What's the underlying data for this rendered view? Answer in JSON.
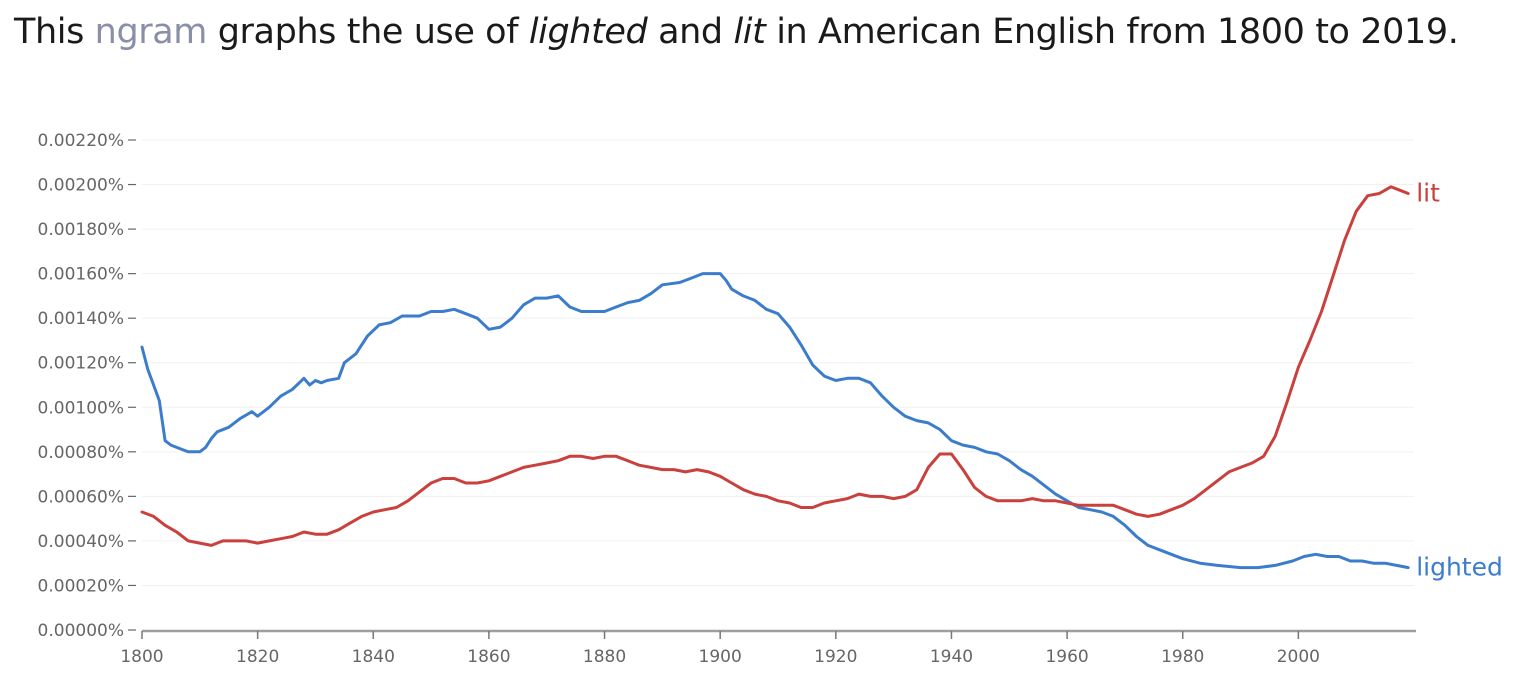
{
  "caption": {
    "prefix": "This ",
    "link_text": "ngram",
    "middle1": " graphs the use of ",
    "word1": "lighted",
    "middle2": " and ",
    "word2": "lit",
    "suffix": " in American English from 1800 to 2019."
  },
  "chart_data": {
    "type": "line",
    "title": "",
    "xlabel": "",
    "ylabel": "",
    "xlim": [
      1800,
      2019
    ],
    "ylim": [
      0,
      0.0022
    ],
    "x_ticks": [
      1800,
      1820,
      1840,
      1860,
      1880,
      1900,
      1920,
      1940,
      1960,
      1980,
      2000
    ],
    "x_tick_labels": [
      "1800",
      "1820",
      "1840",
      "1860",
      "1880",
      "1900",
      "1920",
      "1940",
      "1960",
      "1980",
      "2000"
    ],
    "y_ticks": [
      0,
      0.0002,
      0.0004,
      0.0006,
      0.0008,
      0.001,
      0.0012,
      0.0014,
      0.0016,
      0.0018,
      0.002,
      0.0022
    ],
    "y_tick_labels": [
      "0.00000%",
      "0.00020%",
      "0.00040%",
      "0.00060%",
      "0.00080%",
      "0.00100%",
      "0.00120%",
      "0.00140%",
      "0.00160%",
      "0.00180%",
      "0.00200%",
      "0.00220%"
    ],
    "grid": "horizontal",
    "legend": "end-of-line labels",
    "series": [
      {
        "name": "lighted",
        "color": "#3b7dcc",
        "points": [
          [
            1800,
            0.00127
          ],
          [
            1801,
            0.00117
          ],
          [
            1802,
            0.0011
          ],
          [
            1803,
            0.00103
          ],
          [
            1804,
            0.00085
          ],
          [
            1805,
            0.00083
          ],
          [
            1806,
            0.00082
          ],
          [
            1807,
            0.00081
          ],
          [
            1808,
            0.0008
          ],
          [
            1810,
            0.0008
          ],
          [
            1811,
            0.00082
          ],
          [
            1812,
            0.00086
          ],
          [
            1813,
            0.00089
          ],
          [
            1815,
            0.00091
          ],
          [
            1817,
            0.00095
          ],
          [
            1819,
            0.00098
          ],
          [
            1820,
            0.00096
          ],
          [
            1822,
            0.001
          ],
          [
            1824,
            0.00105
          ],
          [
            1826,
            0.00108
          ],
          [
            1828,
            0.00113
          ],
          [
            1829,
            0.0011
          ],
          [
            1830,
            0.00112
          ],
          [
            1831,
            0.00111
          ],
          [
            1832,
            0.00112
          ],
          [
            1834,
            0.00113
          ],
          [
            1835,
            0.0012
          ],
          [
            1837,
            0.00124
          ],
          [
            1839,
            0.00132
          ],
          [
            1841,
            0.00137
          ],
          [
            1843,
            0.00138
          ],
          [
            1845,
            0.00141
          ],
          [
            1848,
            0.00141
          ],
          [
            1850,
            0.00143
          ],
          [
            1852,
            0.00143
          ],
          [
            1854,
            0.00144
          ],
          [
            1856,
            0.00142
          ],
          [
            1858,
            0.0014
          ],
          [
            1860,
            0.00135
          ],
          [
            1862,
            0.00136
          ],
          [
            1864,
            0.0014
          ],
          [
            1866,
            0.00146
          ],
          [
            1868,
            0.00149
          ],
          [
            1870,
            0.00149
          ],
          [
            1872,
            0.0015
          ],
          [
            1874,
            0.00145
          ],
          [
            1876,
            0.00143
          ],
          [
            1878,
            0.00143
          ],
          [
            1880,
            0.00143
          ],
          [
            1882,
            0.00145
          ],
          [
            1884,
            0.00147
          ],
          [
            1886,
            0.00148
          ],
          [
            1888,
            0.00151
          ],
          [
            1890,
            0.00155
          ],
          [
            1893,
            0.00156
          ],
          [
            1895,
            0.00158
          ],
          [
            1897,
            0.0016
          ],
          [
            1900,
            0.0016
          ],
          [
            1901,
            0.00157
          ],
          [
            1902,
            0.00153
          ],
          [
            1904,
            0.0015
          ],
          [
            1906,
            0.00148
          ],
          [
            1908,
            0.00144
          ],
          [
            1910,
            0.00142
          ],
          [
            1912,
            0.00136
          ],
          [
            1914,
            0.00128
          ],
          [
            1916,
            0.00119
          ],
          [
            1918,
            0.00114
          ],
          [
            1920,
            0.00112
          ],
          [
            1922,
            0.00113
          ],
          [
            1924,
            0.00113
          ],
          [
            1926,
            0.00111
          ],
          [
            1928,
            0.00105
          ],
          [
            1930,
            0.001
          ],
          [
            1932,
            0.00096
          ],
          [
            1934,
            0.00094
          ],
          [
            1936,
            0.00093
          ],
          [
            1938,
            0.0009
          ],
          [
            1940,
            0.00085
          ],
          [
            1942,
            0.00083
          ],
          [
            1944,
            0.00082
          ],
          [
            1946,
            0.0008
          ],
          [
            1948,
            0.00079
          ],
          [
            1950,
            0.00076
          ],
          [
            1952,
            0.00072
          ],
          [
            1954,
            0.00069
          ],
          [
            1956,
            0.00065
          ],
          [
            1958,
            0.00061
          ],
          [
            1960,
            0.00058
          ],
          [
            1962,
            0.00055
          ],
          [
            1964,
            0.00054
          ],
          [
            1966,
            0.00053
          ],
          [
            1968,
            0.00051
          ],
          [
            1970,
            0.00047
          ],
          [
            1972,
            0.00042
          ],
          [
            1974,
            0.00038
          ],
          [
            1976,
            0.00036
          ],
          [
            1978,
            0.00034
          ],
          [
            1980,
            0.00032
          ],
          [
            1983,
            0.0003
          ],
          [
            1986,
            0.00029
          ],
          [
            1990,
            0.00028
          ],
          [
            1993,
            0.00028
          ],
          [
            1996,
            0.00029
          ],
          [
            1999,
            0.00031
          ],
          [
            2001,
            0.00033
          ],
          [
            2003,
            0.00034
          ],
          [
            2005,
            0.00033
          ],
          [
            2007,
            0.00033
          ],
          [
            2009,
            0.00031
          ],
          [
            2011,
            0.00031
          ],
          [
            2013,
            0.0003
          ],
          [
            2015,
            0.0003
          ],
          [
            2017,
            0.00029
          ],
          [
            2019,
            0.00028
          ]
        ]
      },
      {
        "name": "lit",
        "color": "#c9403d",
        "points": [
          [
            1800,
            0.00053
          ],
          [
            1802,
            0.00051
          ],
          [
            1804,
            0.00047
          ],
          [
            1806,
            0.00044
          ],
          [
            1808,
            0.0004
          ],
          [
            1810,
            0.00039
          ],
          [
            1812,
            0.00038
          ],
          [
            1814,
            0.0004
          ],
          [
            1816,
            0.0004
          ],
          [
            1818,
            0.0004
          ],
          [
            1820,
            0.00039
          ],
          [
            1822,
            0.0004
          ],
          [
            1824,
            0.00041
          ],
          [
            1826,
            0.00042
          ],
          [
            1828,
            0.00044
          ],
          [
            1830,
            0.00043
          ],
          [
            1832,
            0.00043
          ],
          [
            1834,
            0.00045
          ],
          [
            1836,
            0.00048
          ],
          [
            1838,
            0.00051
          ],
          [
            1840,
            0.00053
          ],
          [
            1842,
            0.00054
          ],
          [
            1844,
            0.00055
          ],
          [
            1846,
            0.00058
          ],
          [
            1848,
            0.00062
          ],
          [
            1850,
            0.00066
          ],
          [
            1852,
            0.00068
          ],
          [
            1854,
            0.00068
          ],
          [
            1856,
            0.00066
          ],
          [
            1858,
            0.00066
          ],
          [
            1860,
            0.00067
          ],
          [
            1862,
            0.00069
          ],
          [
            1864,
            0.00071
          ],
          [
            1866,
            0.00073
          ],
          [
            1868,
            0.00074
          ],
          [
            1870,
            0.00075
          ],
          [
            1872,
            0.00076
          ],
          [
            1874,
            0.00078
          ],
          [
            1876,
            0.00078
          ],
          [
            1878,
            0.00077
          ],
          [
            1880,
            0.00078
          ],
          [
            1882,
            0.00078
          ],
          [
            1884,
            0.00076
          ],
          [
            1886,
            0.00074
          ],
          [
            1888,
            0.00073
          ],
          [
            1890,
            0.00072
          ],
          [
            1892,
            0.00072
          ],
          [
            1894,
            0.00071
          ],
          [
            1896,
            0.00072
          ],
          [
            1898,
            0.00071
          ],
          [
            1900,
            0.00069
          ],
          [
            1902,
            0.00066
          ],
          [
            1904,
            0.00063
          ],
          [
            1906,
            0.00061
          ],
          [
            1908,
            0.0006
          ],
          [
            1910,
            0.00058
          ],
          [
            1912,
            0.00057
          ],
          [
            1914,
            0.00055
          ],
          [
            1916,
            0.00055
          ],
          [
            1918,
            0.00057
          ],
          [
            1920,
            0.00058
          ],
          [
            1922,
            0.00059
          ],
          [
            1924,
            0.00061
          ],
          [
            1926,
            0.0006
          ],
          [
            1928,
            0.0006
          ],
          [
            1930,
            0.00059
          ],
          [
            1932,
            0.0006
          ],
          [
            1934,
            0.00063
          ],
          [
            1936,
            0.00073
          ],
          [
            1938,
            0.00079
          ],
          [
            1940,
            0.00079
          ],
          [
            1942,
            0.00072
          ],
          [
            1944,
            0.00064
          ],
          [
            1946,
            0.0006
          ],
          [
            1948,
            0.00058
          ],
          [
            1950,
            0.00058
          ],
          [
            1952,
            0.00058
          ],
          [
            1954,
            0.00059
          ],
          [
            1956,
            0.00058
          ],
          [
            1958,
            0.00058
          ],
          [
            1960,
            0.00057
          ],
          [
            1962,
            0.00056
          ],
          [
            1964,
            0.00056
          ],
          [
            1966,
            0.00056
          ],
          [
            1968,
            0.00056
          ],
          [
            1970,
            0.00054
          ],
          [
            1972,
            0.00052
          ],
          [
            1974,
            0.00051
          ],
          [
            1976,
            0.00052
          ],
          [
            1978,
            0.00054
          ],
          [
            1980,
            0.00056
          ],
          [
            1982,
            0.00059
          ],
          [
            1984,
            0.00063
          ],
          [
            1986,
            0.00067
          ],
          [
            1988,
            0.00071
          ],
          [
            1990,
            0.00073
          ],
          [
            1992,
            0.00075
          ],
          [
            1994,
            0.00078
          ],
          [
            1996,
            0.00087
          ],
          [
            1998,
            0.00102
          ],
          [
            2000,
            0.00118
          ],
          [
            2002,
            0.0013
          ],
          [
            2004,
            0.00143
          ],
          [
            2006,
            0.00159
          ],
          [
            2008,
            0.00175
          ],
          [
            2010,
            0.00188
          ],
          [
            2012,
            0.00195
          ],
          [
            2014,
            0.00196
          ],
          [
            2016,
            0.00199
          ],
          [
            2018,
            0.00197
          ],
          [
            2019,
            0.00196
          ]
        ]
      }
    ]
  }
}
